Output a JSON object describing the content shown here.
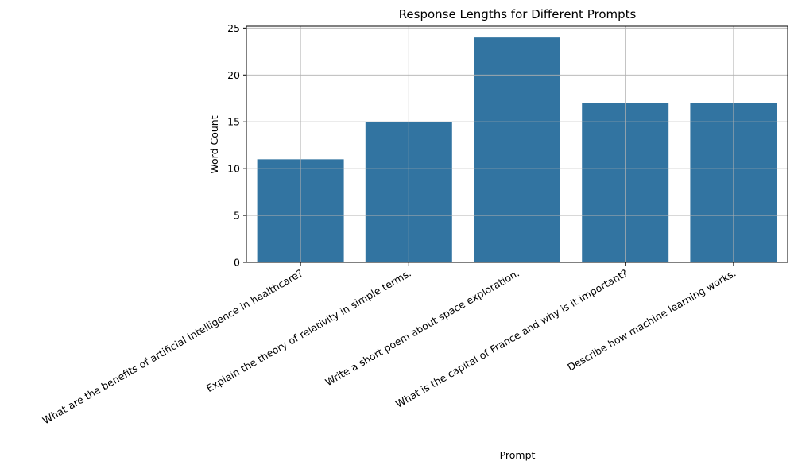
{
  "chart_data": {
    "type": "bar",
    "title": "Response Lengths for Different Prompts",
    "xlabel": "Prompt",
    "ylabel": "Word Count",
    "categories": [
      "What are the benefits of artificial intelligence in healthcare?",
      "Explain the theory of relativity in simple terms.",
      "Write a short poem about space exploration.",
      "What is the capital of France and why is it important?",
      "Describe how machine learning works."
    ],
    "values": [
      11,
      15,
      24,
      17,
      17
    ],
    "ylim": [
      0,
      25.2
    ],
    "yticks": [
      0,
      5,
      10,
      15,
      20,
      25
    ],
    "grid": true,
    "bar_color": "#3274a1",
    "grid_color": "#b0b0b0"
  }
}
